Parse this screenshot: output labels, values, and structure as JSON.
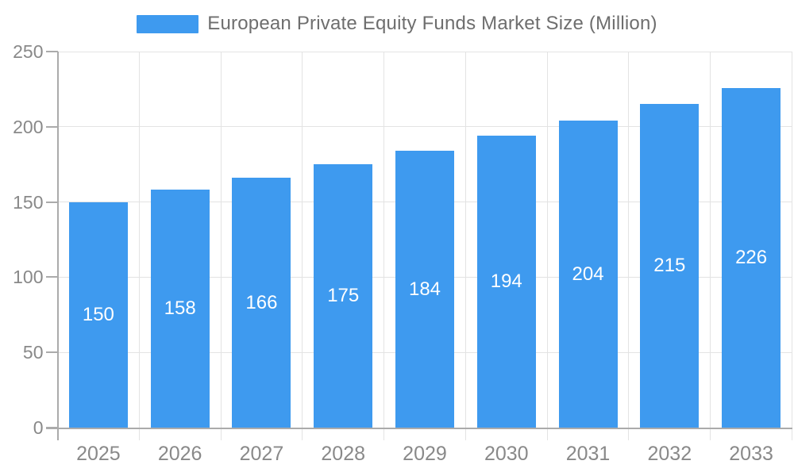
{
  "chart_data": {
    "type": "bar",
    "title": "European Private Equity Funds Market Size (Million)",
    "categories": [
      "2025",
      "2026",
      "2027",
      "2028",
      "2029",
      "2030",
      "2031",
      "2032",
      "2033"
    ],
    "values": [
      150,
      158,
      166,
      175,
      184,
      194,
      204,
      215,
      226
    ],
    "xlabel": "",
    "ylabel": "",
    "ylim": [
      0,
      250
    ],
    "yticks": [
      0,
      50,
      100,
      150,
      200,
      250
    ],
    "grid": true,
    "legend_position": "top-center",
    "colors": {
      "bar": "#3E9AEF",
      "bar_value_text": "#FFFFFF",
      "axis_text": "#898989",
      "legend_text": "#6E6E6E",
      "gridline": "#E3E3E3",
      "axis_line": "#ABABAB"
    }
  }
}
